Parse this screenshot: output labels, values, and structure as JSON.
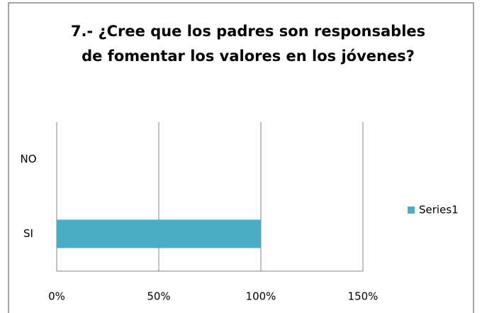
{
  "chart_data": {
    "type": "hbar",
    "title": [
      "7.- ¿Cree que los padres son responsables",
      "de fomentar los valores en los jóvenes?"
    ],
    "categories": [
      "NO",
      "SI"
    ],
    "series": [
      {
        "name": "Series1",
        "color": "#4bacc6",
        "values": [
          0,
          100
        ]
      }
    ],
    "xlim": [
      0,
      150
    ],
    "xticks": [
      {
        "value": 0,
        "label": "0%"
      },
      {
        "value": 50,
        "label": "50%"
      },
      {
        "value": 100,
        "label": "100%"
      },
      {
        "value": 150,
        "label": "150%"
      }
    ],
    "grid": true,
    "legend": "right"
  }
}
